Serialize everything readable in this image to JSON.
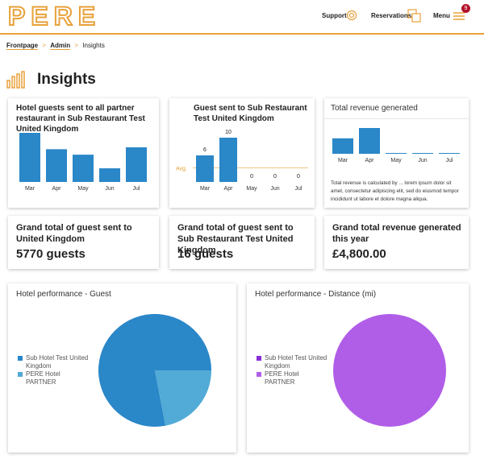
{
  "header": {
    "logo": "PERE",
    "nav": [
      "Support",
      "Reservations",
      "Menu"
    ],
    "badge": "9"
  },
  "breadcrumb": [
    "Frontpage",
    "Admin",
    "Insights"
  ],
  "page_title": "Insights",
  "chart_data": [
    {
      "type": "bar",
      "title": "Hotel guests sent to all partner restaurant in Sub Restaurant Test United Kingdom",
      "categories": [
        "Mar",
        "Apr",
        "May",
        "Jun",
        "Jul"
      ],
      "values": [
        1800,
        1200,
        1000,
        500,
        1270
      ],
      "color": "#2a87c8"
    },
    {
      "type": "bar",
      "title": "Guest sent to Sub Restaurant Test United Kingdom",
      "categories": [
        "Mar",
        "Apr",
        "May",
        "Jun",
        "Jul"
      ],
      "values": [
        6,
        10,
        0,
        0,
        0
      ],
      "color": "#2a87c8",
      "average": 3.2,
      "average_label": "Avg.",
      "average_color": "#e8a13a"
    },
    {
      "type": "bar",
      "title": "Total revenue generated",
      "categories": [
        "Mar",
        "Apr",
        "May",
        "Jun",
        "Jul"
      ],
      "values": [
        1800,
        3000,
        0,
        0,
        0
      ],
      "color": "#2a87c8",
      "note": "Total revenue is calculated by ... lorem ipsum dolor sit amet, consectetur adipiscing elit, sed do eiusmod tempor incididunt ut labore et dolore magna aliqua."
    },
    {
      "type": "pie",
      "title": "Hotel performance - Guest",
      "categories": [
        "Sub Hotel Test United Kingdom",
        "PERE Hotel PARTNER"
      ],
      "values": [
        78,
        22
      ],
      "colors": [
        "#2a87c8",
        "#52aad6"
      ]
    },
    {
      "type": "pie",
      "title": "Hotel performance - Distance (mi)",
      "categories": [
        "Sub Hotel Test United Kingdom",
        "PERE Hotel PARTNER"
      ],
      "values": [
        0,
        100
      ],
      "colors": [
        "#8a2fd6",
        "#b05de8"
      ]
    }
  ],
  "totals": [
    {
      "title": "Grand total of guest sent to United Kingdom",
      "value": "5770 guests"
    },
    {
      "title": "Grand total of guest sent to Sub Restaurant Test United Kingdom",
      "value": "16 guests"
    },
    {
      "title": "Grand total revenue generated this year",
      "value": "£4,800.00"
    }
  ]
}
